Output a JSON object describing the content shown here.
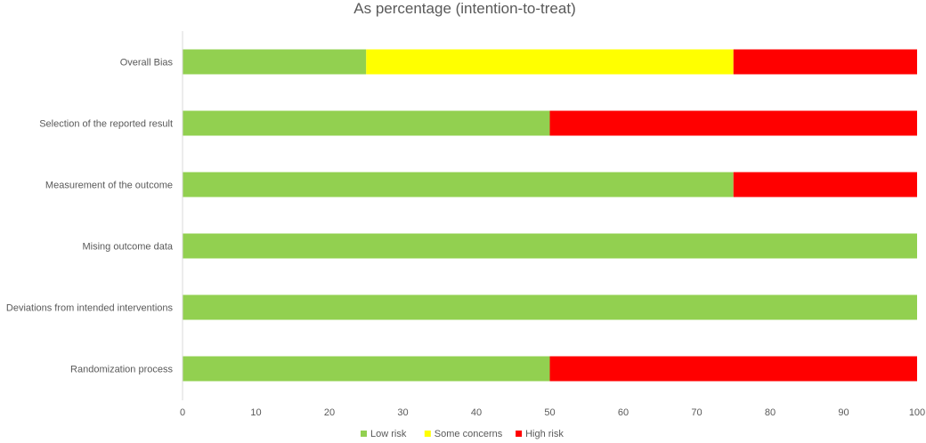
{
  "chart_data": {
    "type": "bar",
    "orientation": "horizontal",
    "stacked": true,
    "title": "As percentage (intention-to-treat)",
    "xlabel": "",
    "ylabel": "",
    "xlim": [
      0,
      100
    ],
    "x_ticks": [
      0,
      10,
      20,
      30,
      40,
      50,
      60,
      70,
      80,
      90,
      100
    ],
    "categories": [
      "Overall Bias",
      "Selection of the reported result",
      "Measurement of the outcome",
      "Mising outcome data",
      "Deviations from intended interventions",
      "Randomization process"
    ],
    "series": [
      {
        "name": "Low risk",
        "color": "#92d050",
        "values": [
          25,
          50,
          75,
          100,
          100,
          50
        ]
      },
      {
        "name": "Some concerns",
        "color": "#ffff00",
        "values": [
          50,
          0,
          0,
          0,
          0,
          0
        ]
      },
      {
        "name": "High risk",
        "color": "#ff0000",
        "values": [
          25,
          50,
          25,
          0,
          0,
          50
        ]
      }
    ],
    "grid": false,
    "legend_position": "bottom"
  }
}
